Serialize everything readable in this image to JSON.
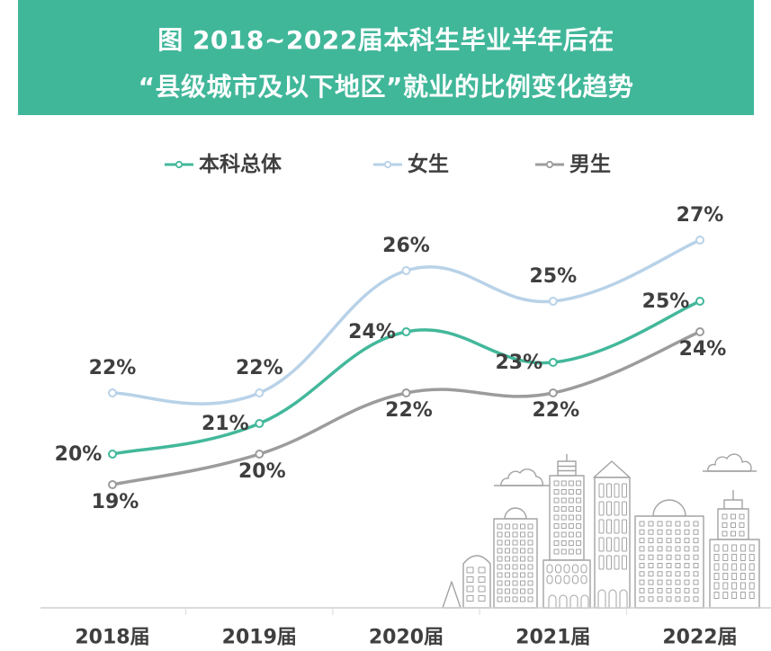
{
  "colors": {
    "banner": "#41b79a",
    "title_text": "#ffffff",
    "label_text": "#3f3f3f",
    "axis": "#cfcfcf",
    "illustration": "#a3a3a3"
  },
  "decoration": {
    "illustration": "city-skyline-icon"
  },
  "chart_data": {
    "type": "line",
    "title": "图 2018~2022届本科生毕业半年后在\n“县级城市及以下地区”就业的比例变化趋势",
    "categories": [
      "2018届",
      "2019届",
      "2020届",
      "2021届",
      "2022届"
    ],
    "unit": "%",
    "series": [
      {
        "name": "本科总体",
        "values": [
          20,
          21,
          24,
          23,
          25
        ],
        "color": "#43b89b",
        "label_position": "left"
      },
      {
        "name": "女生",
        "values": [
          22,
          22,
          26,
          25,
          27
        ],
        "color": "#b8d2e8",
        "label_position": "top"
      },
      {
        "name": "男生",
        "values": [
          19,
          20,
          22,
          22,
          24
        ],
        "color": "#9c9c9c",
        "label_position": "bottom"
      }
    ],
    "ylim": [
      18,
      28
    ],
    "smooth": true,
    "markers": true,
    "grid": false,
    "legend_position": "top"
  }
}
